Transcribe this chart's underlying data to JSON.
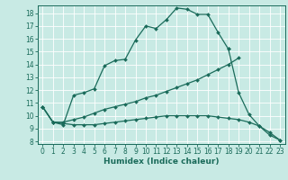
{
  "xlabel": "Humidex (Indice chaleur)",
  "bg_color": "#c8eae4",
  "grid_color": "#b0d8d0",
  "line_color": "#1a6b5a",
  "xlim": [
    -0.5,
    23.5
  ],
  "ylim": [
    7.8,
    18.6
  ],
  "xticks": [
    0,
    1,
    2,
    3,
    4,
    5,
    6,
    7,
    8,
    9,
    10,
    11,
    12,
    13,
    14,
    15,
    16,
    17,
    18,
    19,
    20,
    21,
    22,
    23
  ],
  "yticks": [
    8,
    9,
    10,
    11,
    12,
    13,
    14,
    15,
    16,
    17,
    18
  ],
  "line1_x": [
    0,
    1,
    2,
    3,
    4,
    5,
    6,
    7,
    8,
    9,
    10,
    11,
    12,
    13,
    14,
    15,
    16,
    17,
    18
  ],
  "line1_y": [
    10.7,
    9.5,
    9.3,
    11.6,
    11.8,
    12.1,
    13.9,
    14.3,
    14.4,
    15.9,
    17.0,
    16.8,
    17.5,
    18.4,
    18.3,
    17.9,
    17.9,
    16.5,
    15.2
  ],
  "line2_x": [
    18,
    19,
    20,
    21,
    22,
    23
  ],
  "line2_y": [
    15.2,
    11.8,
    10.1,
    9.2,
    8.5,
    8.1
  ],
  "line3_x": [
    0,
    1,
    2,
    3,
    4,
    5,
    6,
    7,
    8,
    9,
    10,
    11,
    12,
    13,
    14,
    15,
    16,
    17,
    18,
    19
  ],
  "line3_y": [
    10.7,
    9.5,
    9.5,
    9.7,
    9.9,
    10.2,
    10.5,
    10.7,
    10.9,
    11.1,
    11.4,
    11.6,
    11.9,
    12.2,
    12.5,
    12.8,
    13.2,
    13.6,
    14.0,
    14.5
  ],
  "line4_x": [
    0,
    1,
    2,
    3,
    4,
    5,
    6,
    7,
    8,
    9,
    10,
    11,
    12,
    13,
    14,
    15,
    16,
    17,
    18,
    19,
    20,
    21,
    22,
    23
  ],
  "line4_y": [
    10.7,
    9.5,
    9.4,
    9.3,
    9.3,
    9.3,
    9.4,
    9.5,
    9.6,
    9.7,
    9.8,
    9.9,
    10.0,
    10.0,
    10.0,
    10.0,
    10.0,
    9.9,
    9.8,
    9.7,
    9.5,
    9.2,
    8.7,
    8.1
  ],
  "lw": 0.9,
  "msize": 2.0
}
